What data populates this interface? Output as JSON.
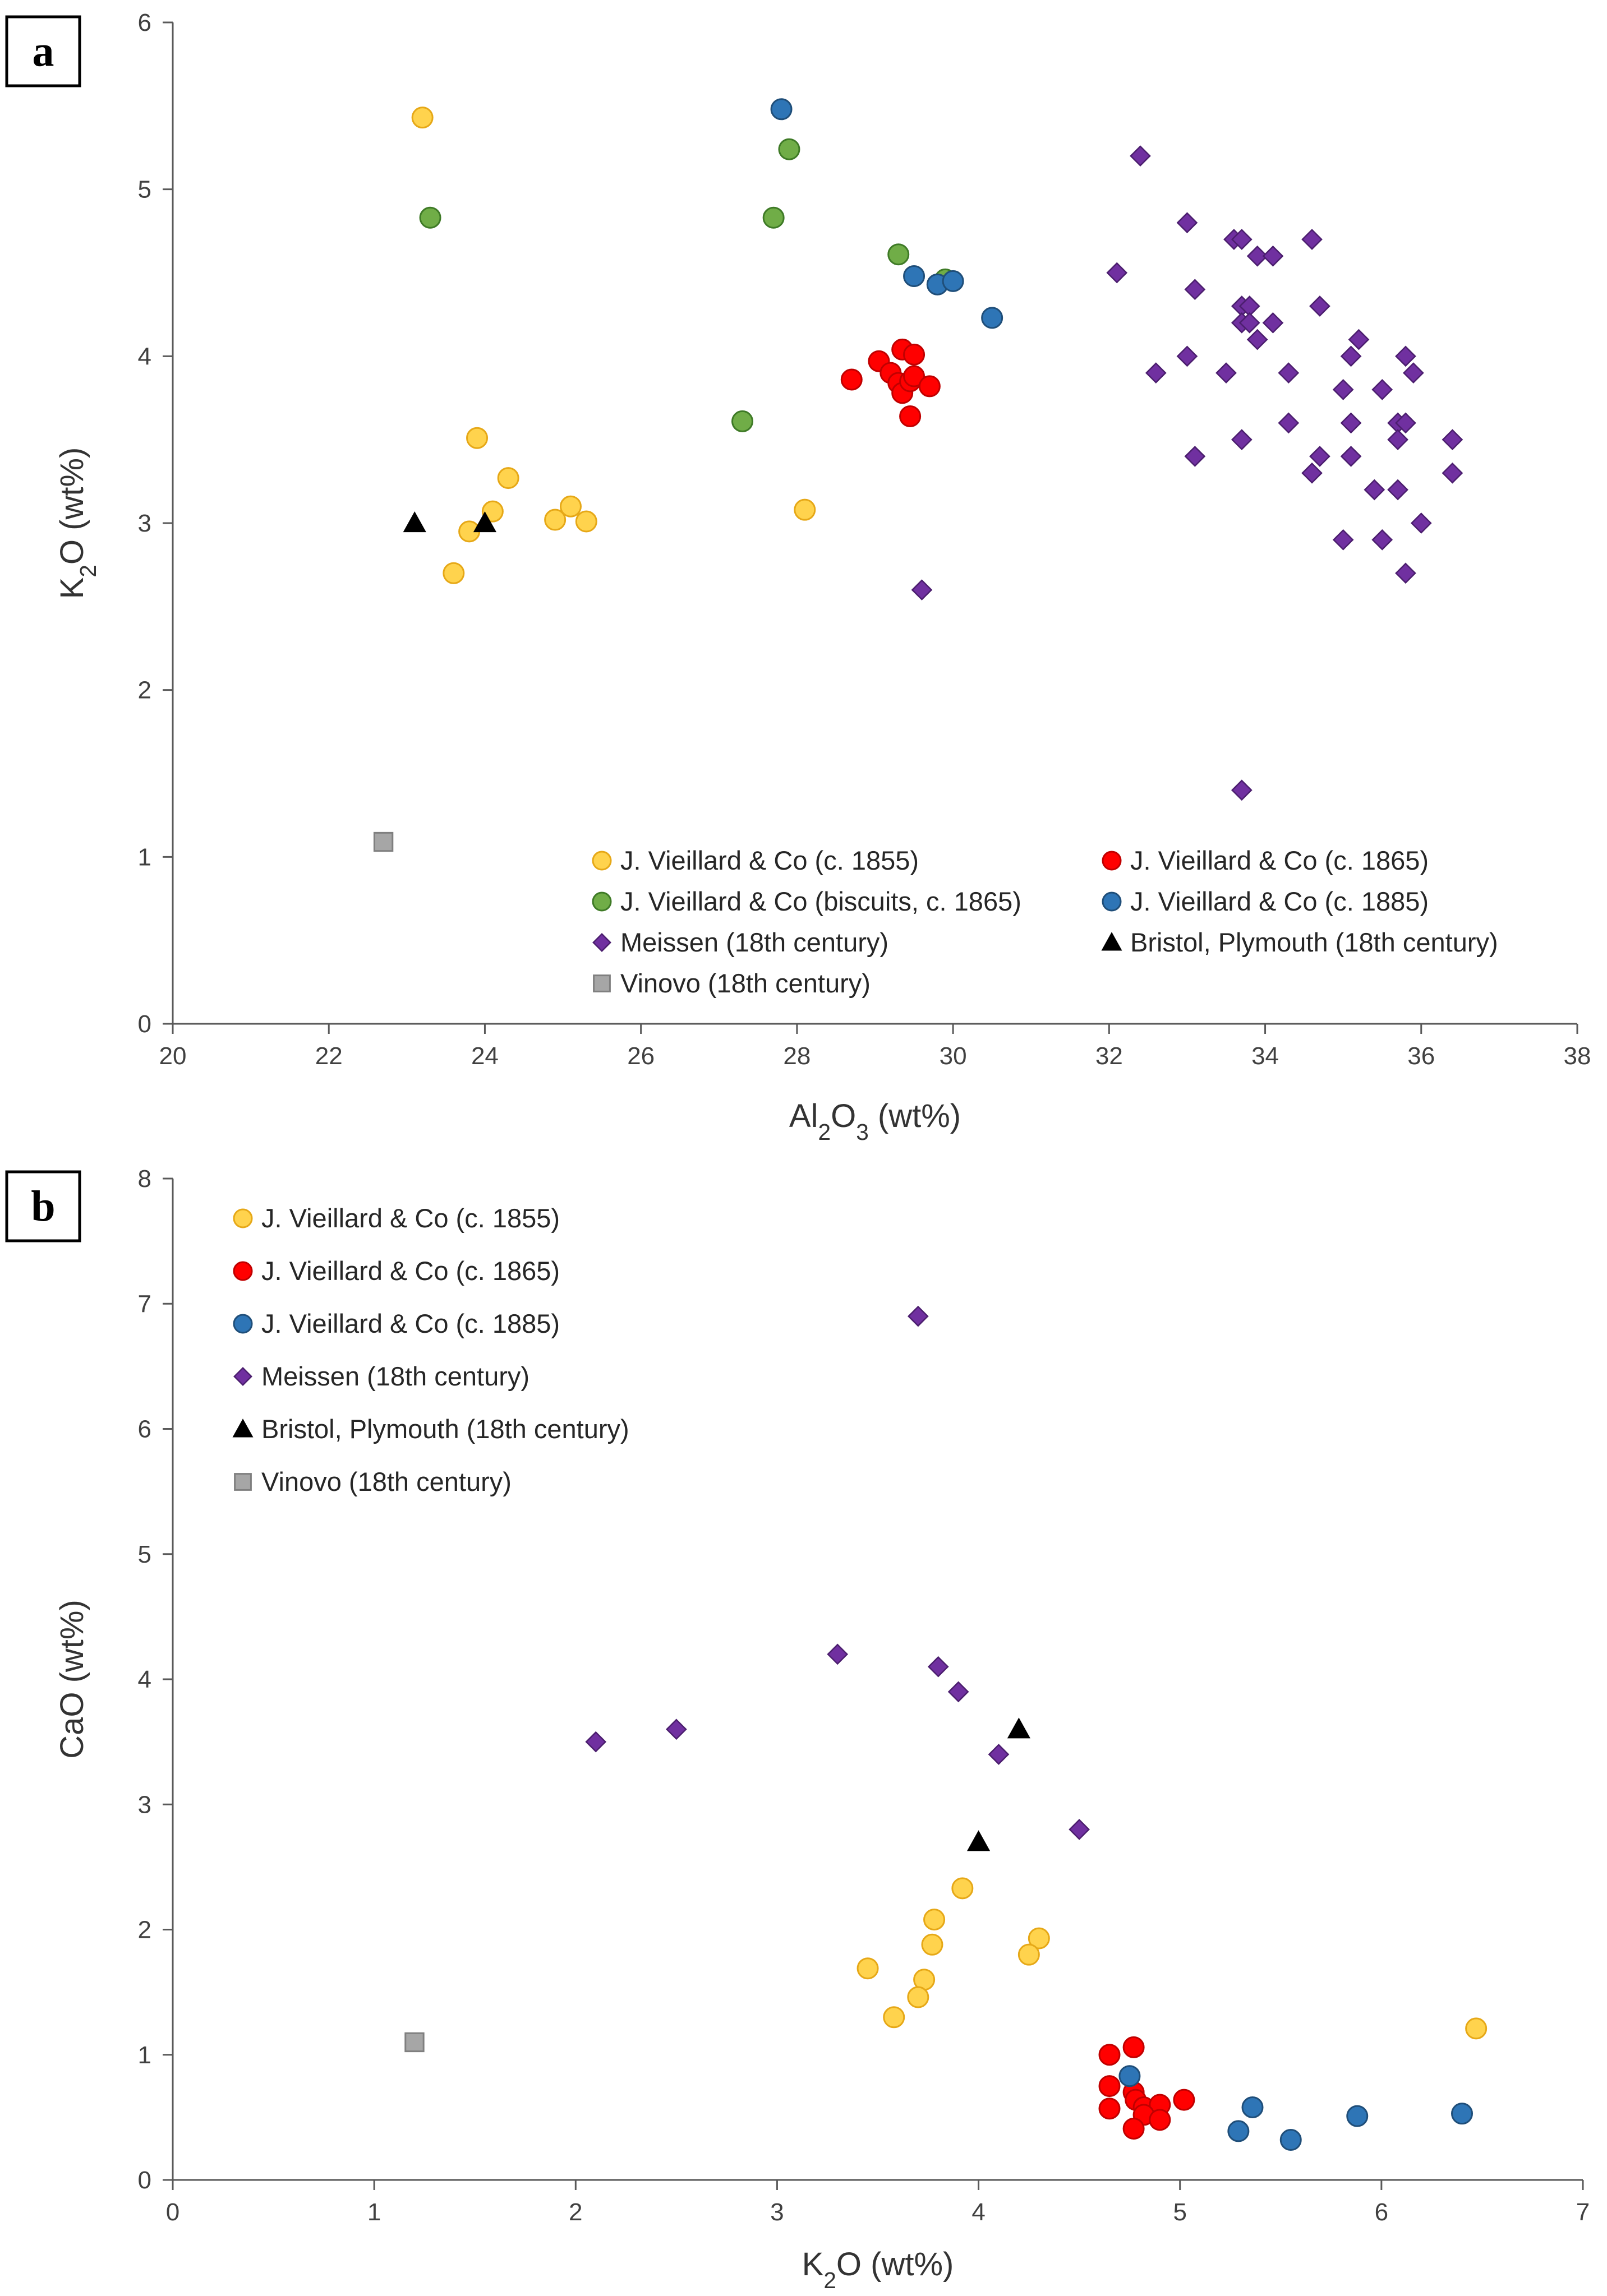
{
  "chart_data": [
    {
      "panel": "a",
      "type": "scatter",
      "title": "",
      "xlabel": "Al₂O₃ (wt%)",
      "ylabel": "K₂O (wt%)",
      "xlim": [
        20,
        38
      ],
      "ylim": [
        0,
        6
      ],
      "xticks": [
        20,
        22,
        24,
        26,
        28,
        30,
        32,
        34,
        36,
        38
      ],
      "yticks": [
        0,
        1,
        2,
        3,
        4,
        5,
        6
      ],
      "grid": false,
      "legend_position": "bottom-center",
      "series": [
        {
          "name": "J. Vieillard & Co (c. 1855)",
          "marker": "circle",
          "color": "#FFD34D",
          "stroke": "#E6A817",
          "points": [
            [
              23.2,
              5.43
            ],
            [
              23.9,
              3.51
            ],
            [
              24.3,
              3.27
            ],
            [
              24.1,
              3.07
            ],
            [
              23.8,
              2.95
            ],
            [
              23.6,
              2.7
            ],
            [
              24.9,
              3.02
            ],
            [
              25.1,
              3.1
            ],
            [
              25.3,
              3.01
            ],
            [
              28.1,
              3.08
            ]
          ]
        },
        {
          "name": "J. Vieillard & Co (c. 1865)",
          "marker": "circle",
          "color": "#FF0000",
          "stroke": "#C00000",
          "points": [
            [
              28.7,
              3.86
            ],
            [
              29.05,
              3.97
            ],
            [
              29.2,
              3.9
            ],
            [
              29.3,
              3.84
            ],
            [
              29.35,
              3.78
            ],
            [
              29.35,
              4.04
            ],
            [
              29.45,
              3.85
            ],
            [
              29.5,
              4.01
            ],
            [
              29.5,
              3.88
            ],
            [
              29.45,
              3.64
            ],
            [
              29.7,
              3.82
            ]
          ]
        },
        {
          "name": "J. Vieillard & Co (biscuits, c. 1865)",
          "marker": "circle",
          "color": "#70AD47",
          "stroke": "#3E7A26",
          "points": [
            [
              23.3,
              4.83
            ],
            [
              27.9,
              5.24
            ],
            [
              27.7,
              4.83
            ],
            [
              29.3,
              4.61
            ],
            [
              29.9,
              4.46
            ],
            [
              27.3,
              3.61
            ]
          ]
        },
        {
          "name": "J. Vieillard & Co (c. 1885)",
          "marker": "circle",
          "color": "#2E75B6",
          "stroke": "#1F4E79",
          "points": [
            [
              27.8,
              5.48
            ],
            [
              29.5,
              4.48
            ],
            [
              29.8,
              4.43
            ],
            [
              30.0,
              4.45
            ],
            [
              30.5,
              4.23
            ]
          ]
        },
        {
          "name": "Meissen (18th century)",
          "marker": "diamond",
          "color": "#7030A0",
          "stroke": "#4B1E6E",
          "points": [
            [
              32.4,
              5.2
            ],
            [
              33.0,
              4.8
            ],
            [
              33.6,
              4.7
            ],
            [
              33.7,
              4.7
            ],
            [
              34.6,
              4.7
            ],
            [
              33.9,
              4.6
            ],
            [
              34.1,
              4.6
            ],
            [
              32.1,
              4.5
            ],
            [
              33.1,
              4.4
            ],
            [
              33.7,
              4.3
            ],
            [
              33.8,
              4.3
            ],
            [
              34.7,
              4.3
            ],
            [
              33.7,
              4.2
            ],
            [
              33.8,
              4.2
            ],
            [
              34.1,
              4.2
            ],
            [
              33.9,
              4.1
            ],
            [
              35.2,
              4.1
            ],
            [
              33.0,
              4.0
            ],
            [
              35.1,
              4.0
            ],
            [
              35.8,
              4.0
            ],
            [
              32.6,
              3.9
            ],
            [
              33.5,
              3.9
            ],
            [
              34.3,
              3.9
            ],
            [
              35.9,
              3.9
            ],
            [
              35.0,
              3.8
            ],
            [
              35.5,
              3.8
            ],
            [
              34.3,
              3.6
            ],
            [
              35.1,
              3.6
            ],
            [
              35.7,
              3.6
            ],
            [
              35.8,
              3.6
            ],
            [
              33.7,
              3.5
            ],
            [
              35.7,
              3.5
            ],
            [
              36.4,
              3.5
            ],
            [
              33.1,
              3.4
            ],
            [
              34.7,
              3.4
            ],
            [
              35.1,
              3.4
            ],
            [
              34.6,
              3.3
            ],
            [
              36.4,
              3.3
            ],
            [
              35.4,
              3.2
            ],
            [
              35.7,
              3.2
            ],
            [
              36.0,
              3.0
            ],
            [
              35.0,
              2.9
            ],
            [
              35.5,
              2.9
            ],
            [
              35.8,
              2.7
            ],
            [
              29.6,
              2.6
            ],
            [
              33.7,
              1.4
            ]
          ]
        },
        {
          "name": "Bristol, Plymouth (18th century)",
          "marker": "triangle",
          "color": "#000000",
          "stroke": "#000000",
          "points": [
            [
              23.1,
              3.0
            ],
            [
              24.0,
              3.0
            ]
          ]
        },
        {
          "name": "Vinovo (18th century)",
          "marker": "square",
          "color": "#A6A6A6",
          "stroke": "#7F7F7F",
          "points": [
            [
              22.7,
              1.09
            ]
          ]
        }
      ]
    },
    {
      "panel": "b",
      "type": "scatter",
      "title": "",
      "xlabel": "K₂O (wt%)",
      "ylabel": "CaO (wt%)",
      "xlim": [
        0,
        7
      ],
      "ylim": [
        0,
        8
      ],
      "xticks": [
        0,
        1,
        2,
        3,
        4,
        5,
        6,
        7
      ],
      "yticks": [
        0,
        1,
        2,
        3,
        4,
        5,
        6,
        7,
        8
      ],
      "grid": false,
      "legend_position": "top-left",
      "series": [
        {
          "name": "J. Vieillard & Co (c. 1855)",
          "marker": "circle",
          "color": "#FFD34D",
          "stroke": "#E6A817",
          "points": [
            [
              3.92,
              2.33
            ],
            [
              3.78,
              2.08
            ],
            [
              3.77,
              1.88
            ],
            [
              4.3,
              1.93
            ],
            [
              4.25,
              1.8
            ],
            [
              3.45,
              1.69
            ],
            [
              3.73,
              1.6
            ],
            [
              3.7,
              1.46
            ],
            [
              3.58,
              1.3
            ],
            [
              6.47,
              1.21
            ]
          ]
        },
        {
          "name": "J. Vieillard & Co (c. 1865)",
          "marker": "circle",
          "color": "#FF0000",
          "stroke": "#C00000",
          "points": [
            [
              4.77,
              1.06
            ],
            [
              4.65,
              1.0
            ],
            [
              4.65,
              0.75
            ],
            [
              4.77,
              0.7
            ],
            [
              4.78,
              0.64
            ],
            [
              4.65,
              0.57
            ],
            [
              4.82,
              0.58
            ],
            [
              4.9,
              0.6
            ],
            [
              5.02,
              0.64
            ],
            [
              4.82,
              0.52
            ],
            [
              4.9,
              0.48
            ],
            [
              4.77,
              0.41
            ]
          ]
        },
        {
          "name": "J. Vieillard & Co (c. 1885)",
          "marker": "circle",
          "color": "#2E75B6",
          "stroke": "#1F4E79",
          "points": [
            [
              4.75,
              0.83
            ],
            [
              5.36,
              0.58
            ],
            [
              5.88,
              0.51
            ],
            [
              6.4,
              0.53
            ],
            [
              5.29,
              0.39
            ],
            [
              5.55,
              0.32
            ]
          ]
        },
        {
          "name": "Meissen (18th century)",
          "marker": "diamond",
          "color": "#7030A0",
          "stroke": "#4B1E6E",
          "points": [
            [
              3.7,
              6.9
            ],
            [
              3.3,
              4.2
            ],
            [
              3.8,
              4.1
            ],
            [
              3.9,
              3.9
            ],
            [
              2.5,
              3.6
            ],
            [
              2.1,
              3.5
            ],
            [
              4.1,
              3.4
            ],
            [
              4.5,
              2.8
            ]
          ]
        },
        {
          "name": "Bristol, Plymouth (18th century)",
          "marker": "triangle",
          "color": "#000000",
          "stroke": "#000000",
          "points": [
            [
              4.2,
              3.6
            ],
            [
              4.0,
              2.7
            ]
          ]
        },
        {
          "name": "Vinovo (18th century)",
          "marker": "square",
          "color": "#A6A6A6",
          "stroke": "#7F7F7F",
          "points": [
            [
              1.2,
              1.1
            ]
          ]
        }
      ]
    }
  ]
}
